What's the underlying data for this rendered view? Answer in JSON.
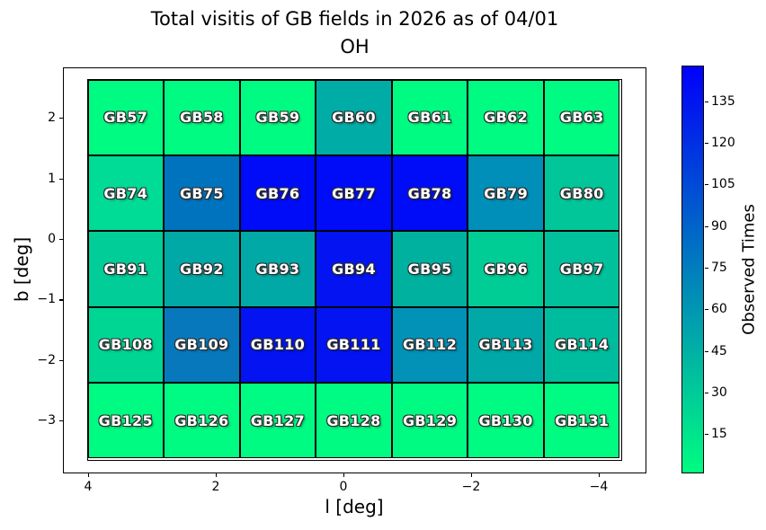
{
  "title": {
    "line1": "Total visitis of GB fields in 2026 as of 04/01",
    "line2": "OH"
  },
  "chart_data": {
    "type": "heatmap",
    "title": "Total visitis of GB fields in 2026 as of 04/01",
    "subtitle": "OH",
    "xlabel": "l [deg]",
    "ylabel": "b [deg]",
    "x_axis_inverted": true,
    "x_ticks": [
      {
        "label": "4",
        "value": 4
      },
      {
        "label": "2",
        "value": 2
      },
      {
        "label": "0",
        "value": 0
      },
      {
        "label": "−2",
        "value": -2
      },
      {
        "label": "−4",
        "value": -4
      }
    ],
    "y_ticks": [
      {
        "label": "2",
        "value": 2
      },
      {
        "label": "1",
        "value": 1
      },
      {
        "label": "0",
        "value": 0
      },
      {
        "label": "−1",
        "value": -1
      },
      {
        "label": "−2",
        "value": -2
      },
      {
        "label": "−3",
        "value": -3
      }
    ],
    "colorbar": {
      "label": "Observed Times",
      "tick_values": [
        15,
        30,
        45,
        60,
        75,
        90,
        105,
        120,
        135
      ],
      "colormap": "winter_r (green = low, blue = high)",
      "range_estimate": [
        0,
        148
      ],
      "bottom_color": "#00fc81",
      "top_color": "#0000fa"
    },
    "rows": [
      {
        "b_center_estimate": 2.0,
        "cells": [
          {
            "label": "GB57",
            "color": "#00fb82",
            "value_estimate": 3
          },
          {
            "label": "GB58",
            "color": "#00fb82",
            "value_estimate": 3
          },
          {
            "label": "GB59",
            "color": "#00fb82",
            "value_estimate": 3
          },
          {
            "label": "GB60",
            "color": "#00aca6",
            "value_estimate": 48
          },
          {
            "label": "GB61",
            "color": "#00fb82",
            "value_estimate": 3
          },
          {
            "label": "GB62",
            "color": "#00fb82",
            "value_estimate": 3
          },
          {
            "label": "GB63",
            "color": "#00fb82",
            "value_estimate": 3
          }
        ]
      },
      {
        "b_center_estimate": 0.75,
        "cells": [
          {
            "label": "GB74",
            "color": "#00db95",
            "value_estimate": 21
          },
          {
            "label": "GB75",
            "color": "#0073bf",
            "value_estimate": 81
          },
          {
            "label": "GB76",
            "color": "#000cf8",
            "value_estimate": 140
          },
          {
            "label": "GB77",
            "color": "#000cf8",
            "value_estimate": 140
          },
          {
            "label": "GB78",
            "color": "#000cf8",
            "value_estimate": 140
          },
          {
            "label": "GB79",
            "color": "#008fb8",
            "value_estimate": 65
          },
          {
            "label": "GB80",
            "color": "#00c699",
            "value_estimate": 33
          }
        ]
      },
      {
        "b_center_estimate": -0.5,
        "cells": [
          {
            "label": "GB91",
            "color": "#00cd98",
            "value_estimate": 29
          },
          {
            "label": "GB92",
            "color": "#00a9a6",
            "value_estimate": 50
          },
          {
            "label": "GB93",
            "color": "#00a9a6",
            "value_estimate": 50
          },
          {
            "label": "GB94",
            "color": "#0313f1",
            "value_estimate": 136
          },
          {
            "label": "GB95",
            "color": "#00b1a0",
            "value_estimate": 45
          },
          {
            "label": "GB96",
            "color": "#00cc95",
            "value_estimate": 29
          },
          {
            "label": "GB97",
            "color": "#00c19b",
            "value_estimate": 36
          }
        ]
      },
      {
        "b_center_estimate": -1.75,
        "cells": [
          {
            "label": "GB108",
            "color": "#00d694",
            "value_estimate": 24
          },
          {
            "label": "GB109",
            "color": "#0778bc",
            "value_estimate": 78
          },
          {
            "label": "GB110",
            "color": "#0313f1",
            "value_estimate": 136
          },
          {
            "label": "GB111",
            "color": "#0313f1",
            "value_estimate": 136
          },
          {
            "label": "GB112",
            "color": "#0292b7",
            "value_estimate": 63
          },
          {
            "label": "GB113",
            "color": "#00a8a7",
            "value_estimate": 50
          },
          {
            "label": "GB114",
            "color": "#00bc9e",
            "value_estimate": 39
          }
        ]
      },
      {
        "b_center_estimate": -3.0,
        "cells": [
          {
            "label": "GB125",
            "color": "#00fb82",
            "value_estimate": 3
          },
          {
            "label": "GB126",
            "color": "#00fb82",
            "value_estimate": 3
          },
          {
            "label": "GB127",
            "color": "#00fb82",
            "value_estimate": 3
          },
          {
            "label": "GB128",
            "color": "#00fb82",
            "value_estimate": 3
          },
          {
            "label": "GB129",
            "color": "#00fb82",
            "value_estimate": 3
          },
          {
            "label": "GB130",
            "color": "#00fb82",
            "value_estimate": 3
          },
          {
            "label": "GB131",
            "color": "#00fb82",
            "value_estimate": 3
          }
        ]
      }
    ]
  }
}
